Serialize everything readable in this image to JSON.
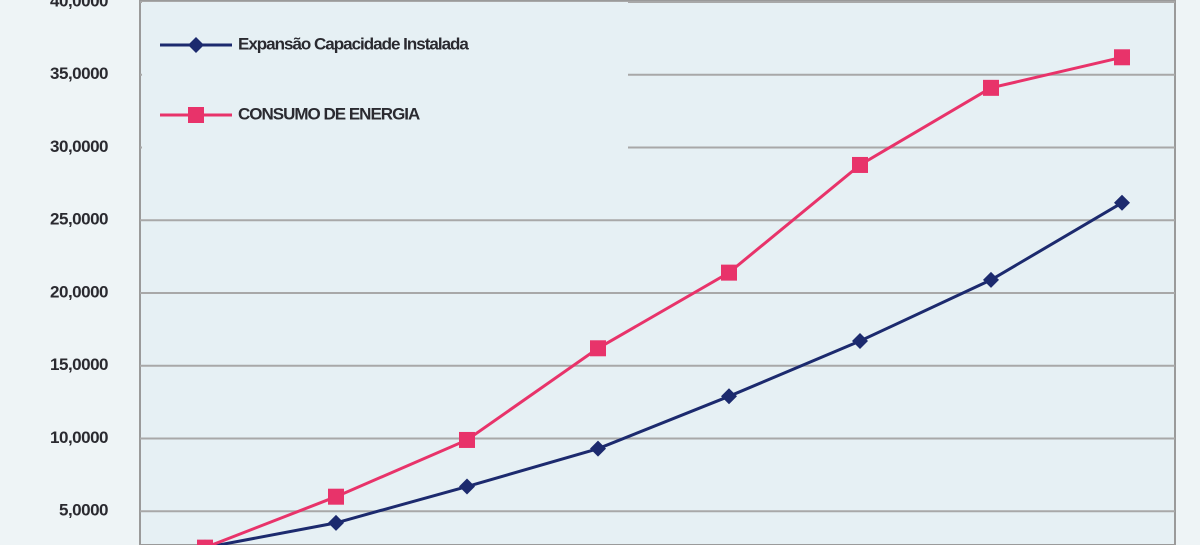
{
  "chart_data": {
    "type": "line",
    "categories": [
      null,
      null,
      null,
      null,
      null,
      null,
      null,
      null
    ],
    "series": [
      {
        "name": "Expansão Capacidade Instalada",
        "color": "#1c2a6e",
        "marker": "diamond",
        "values": [
          2.5,
          4.2,
          6.7,
          9.3,
          12.9,
          16.7,
          20.9,
          26.2
        ]
      },
      {
        "name": "CONSUMO DE ENERGIA",
        "color": "#e8336a",
        "marker": "square",
        "values": [
          2.5,
          6.0,
          9.9,
          16.2,
          21.4,
          28.8,
          34.1,
          36.2
        ]
      }
    ],
    "ylim": [
      0,
      40
    ],
    "yticks": [
      {
        "value": 5,
        "label": "5,0000"
      },
      {
        "value": 10,
        "label": "10,0000"
      },
      {
        "value": 15,
        "label": "15,0000"
      },
      {
        "value": 20,
        "label": "20,0000"
      },
      {
        "value": 25,
        "label": "25,0000"
      },
      {
        "value": 30,
        "label": "30,0000"
      },
      {
        "value": 35,
        "label": "35,0000"
      },
      {
        "value": 40,
        "label": "40,0000"
      }
    ],
    "grid": true,
    "legend": "upper left"
  }
}
